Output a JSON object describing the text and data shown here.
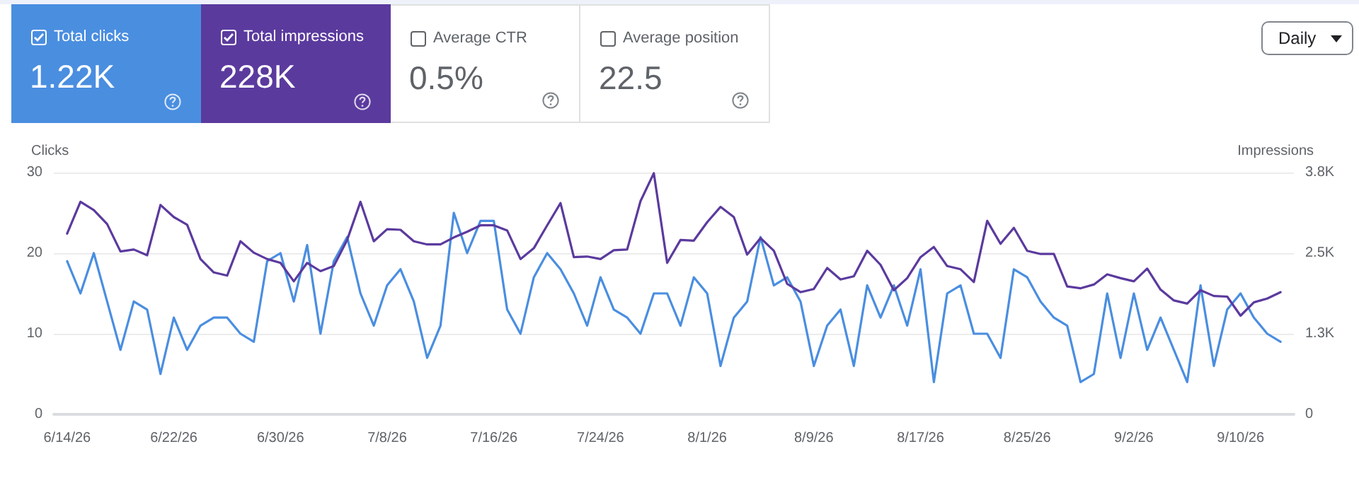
{
  "chart_data": {
    "type": "line",
    "ylabel": "Clicks",
    "y2label": "Impressions",
    "annotations": [
      "Total clicks",
      "1.22K",
      "Total impressions",
      "228K",
      "Average CTR",
      "0.5%",
      "Average position",
      "22.5",
      "Daily"
    ],
    "x": [
      "--06-14",
      "--06-15",
      "--06-16",
      "--06-17",
      "--06-18",
      "--06-19",
      "--06-20",
      "--06-21",
      "--06-22",
      "--06-23",
      "--06-24",
      "--06-25",
      "--06-26",
      "--06-27",
      "--06-28",
      "--06-29",
      "--06-30",
      "--07-01",
      "--07-02",
      "--07-03",
      "--07-04",
      "--07-05",
      "--07-06",
      "--07-07",
      "--07-08",
      "--07-09",
      "--07-10",
      "--07-11",
      "--07-12",
      "--07-13",
      "--07-14",
      "--07-15",
      "--07-16",
      "--07-17",
      "--07-18",
      "--07-19",
      "--07-20",
      "--07-21",
      "--07-22",
      "--07-23",
      "--07-24",
      "--07-25",
      "--07-26",
      "--07-27",
      "--07-28",
      "--07-29",
      "--07-30",
      "--07-31",
      "--08-01",
      "--08-02",
      "--08-03",
      "--08-04",
      "--08-05",
      "--08-06",
      "--08-07",
      "--08-08",
      "--08-09",
      "--08-10",
      "--08-11",
      "--08-12",
      "--08-13",
      "--08-14",
      "--08-15",
      "--08-16",
      "--08-17",
      "--08-18",
      "--08-19",
      "--08-20",
      "--08-21",
      "--08-22",
      "--08-23",
      "--08-24",
      "--08-25",
      "--08-26",
      "--08-27",
      "--08-28",
      "--08-29",
      "--08-30",
      "--08-31",
      "--09-01",
      "--09-02",
      "--09-03",
      "--09-04",
      "--09-05",
      "--09-06",
      "--09-07",
      "--09-08",
      "--09-09",
      "--09-10",
      "--09-11",
      "--09-12",
      "--09-13"
    ],
    "series": [
      {
        "color": "#4a8ee0",
        "values": [
          19,
          15,
          20,
          14,
          8,
          14,
          13,
          5,
          12,
          8,
          11,
          12,
          12,
          10,
          9,
          19,
          20,
          14,
          21,
          10,
          19,
          22,
          15,
          11,
          16,
          18,
          14,
          7,
          11,
          25,
          20,
          24,
          24,
          13,
          10,
          17,
          20,
          18,
          15,
          11,
          17,
          13,
          12,
          10,
          15,
          15,
          11,
          17,
          15,
          6,
          12,
          14,
          22,
          16,
          17,
          14,
          6,
          11,
          13,
          6,
          16,
          12,
          16,
          11,
          18,
          4,
          15,
          16,
          10,
          10,
          7,
          18,
          17,
          14,
          12,
          11,
          4,
          5,
          15,
          7,
          15,
          8,
          12,
          8,
          4,
          16,
          6,
          13,
          15,
          12,
          10,
          9
        ]
      },
      {
        "color": "#5b3a9e",
        "axis": "y2",
        "values": [
          2840,
          3340,
          3210,
          2990,
          2560,
          2590,
          2500,
          3290,
          3100,
          2980,
          2440,
          2230,
          2180,
          2720,
          2540,
          2440,
          2380,
          2090,
          2380,
          2250,
          2330,
          2740,
          3340,
          2720,
          2910,
          2900,
          2720,
          2670,
          2670,
          2780,
          2870,
          2970,
          2970,
          2890,
          2440,
          2610,
          2970,
          3320,
          2470,
          2480,
          2440,
          2580,
          2590,
          3350,
          3790,
          2380,
          2740,
          2730,
          3020,
          3260,
          3100,
          2510,
          2770,
          2570,
          2050,
          1920,
          1970,
          2300,
          2120,
          2170,
          2570,
          2350,
          1950,
          2140,
          2470,
          2630,
          2330,
          2280,
          2080,
          3040,
          2680,
          2930,
          2570,
          2520,
          2520,
          2010,
          1980,
          2040,
          2200,
          2140,
          2090,
          2290,
          1960,
          1790,
          1740,
          1950,
          1860,
          1850,
          1550,
          1760,
          1820,
          1920
        ]
      }
    ],
    "xlim": [
      "--06-13",
      "--09-14"
    ],
    "xticks": [
      {
        "value": "--06-14",
        "label": "6/14/26"
      },
      {
        "value": "--06-22",
        "label": "6/22/26"
      },
      {
        "value": "--06-30",
        "label": "6/30/26"
      },
      {
        "value": "--07-08",
        "label": "7/8/26"
      },
      {
        "value": "--07-16",
        "label": "7/16/26"
      },
      {
        "value": "--07-24",
        "label": "7/24/26"
      },
      {
        "value": "--08-01",
        "label": "8/1/26"
      },
      {
        "value": "--08-09",
        "label": "8/9/26"
      },
      {
        "value": "--08-17",
        "label": "8/17/26"
      },
      {
        "value": "--08-25",
        "label": "8/25/26"
      },
      {
        "value": "--09-02",
        "label": "9/2/26"
      },
      {
        "value": "--09-10",
        "label": "9/10/26"
      }
    ],
    "ylim": [
      0,
      30
    ],
    "yticks": [
      0,
      10,
      20,
      30
    ],
    "y2lim": [
      0,
      3800
    ],
    "y2ticks": [
      0,
      {
        "value": 1266.67,
        "label": "1.3K"
      },
      {
        "value": 2533.33,
        "label": "2.5K"
      },
      {
        "value": 3800,
        "label": "3.8K"
      }
    ],
    "grid": "y",
    "marker": "none",
    "line_style": "solid"
  }
}
